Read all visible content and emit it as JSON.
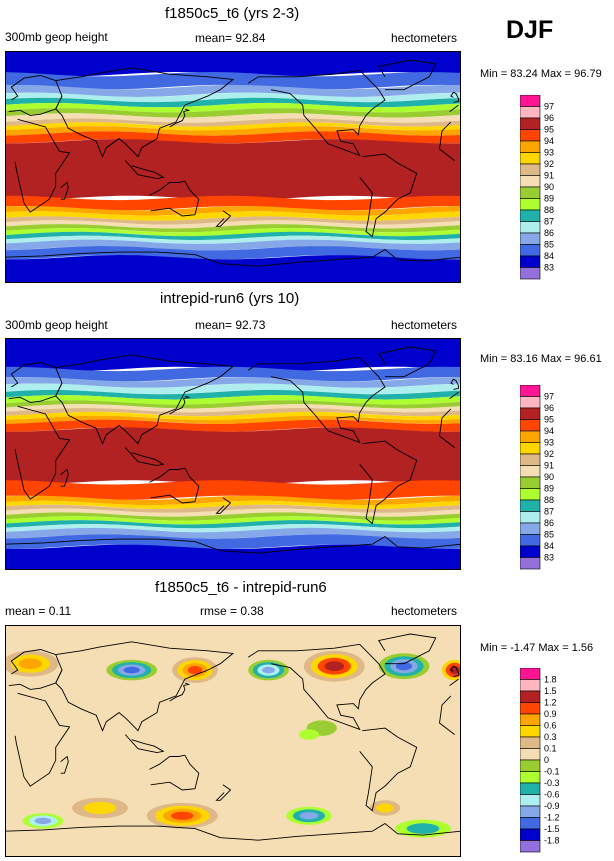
{
  "season": "DJF",
  "chart_data": [
    {
      "type": "filled-contour-map",
      "title": "f1850c5_t6 (yrs 2-3)",
      "left_label": "300mb geop height",
      "center_label": "mean=  92.84",
      "right_label": "hectometers",
      "stats": "Min =  83.24 Max =  96.79",
      "levels": [
        "97",
        "96",
        "95",
        "94",
        "93",
        "92",
        "91",
        "90",
        "89",
        "88",
        "87",
        "86",
        "85",
        "84",
        "83"
      ],
      "colors": [
        "#ff1493",
        "#ffb6c1",
        "#b22222",
        "#ff4500",
        "#ffa500",
        "#ffd700",
        "#deb887",
        "#f5deb3",
        "#9acd32",
        "#adff2f",
        "#20b2aa",
        "#afeeee",
        "#87a8e8",
        "#4169e1",
        "#0000cd",
        "#9370db"
      ],
      "bands": [
        {
          "lat_from": 90,
          "lat_to": 72,
          "level": 84
        },
        {
          "lat_from": 72,
          "lat_to": 62,
          "level": 85
        },
        {
          "lat_from": 62,
          "lat_to": 56,
          "level": 86
        },
        {
          "lat_from": 56,
          "lat_to": 52,
          "level": 87
        },
        {
          "lat_from": 52,
          "lat_to": 48,
          "level": 88
        },
        {
          "lat_from": 48,
          "lat_to": 44,
          "level": 89
        },
        {
          "lat_from": 44,
          "lat_to": 40,
          "level": 90
        },
        {
          "lat_from": 40,
          "lat_to": 36,
          "level": 91
        },
        {
          "lat_from": 36,
          "lat_to": 33,
          "level": 92
        },
        {
          "lat_from": 33,
          "lat_to": 30,
          "level": 93
        },
        {
          "lat_from": 30,
          "lat_to": 26,
          "level": 94
        },
        {
          "lat_from": 26,
          "lat_to": 20,
          "level": 95
        },
        {
          "lat_from": 20,
          "lat_to": -24,
          "level": 96
        },
        {
          "lat_from": -24,
          "lat_to": -32,
          "level": 95
        },
        {
          "lat_from": -32,
          "lat_to": -36,
          "level": 94
        },
        {
          "lat_from": -36,
          "lat_to": -40,
          "level": 93
        },
        {
          "lat_from": -40,
          "lat_to": -43,
          "level": 92
        },
        {
          "lat_from": -43,
          "lat_to": -46,
          "level": 91
        },
        {
          "lat_from": -46,
          "lat_to": -49,
          "level": 90
        },
        {
          "lat_from": -49,
          "lat_to": -52,
          "level": 89
        },
        {
          "lat_from": -52,
          "lat_to": -55,
          "level": 88
        },
        {
          "lat_from": -55,
          "lat_to": -58,
          "level": 87
        },
        {
          "lat_from": -58,
          "lat_to": -63,
          "level": 86
        },
        {
          "lat_from": -63,
          "lat_to": -70,
          "level": 85
        },
        {
          "lat_from": -70,
          "lat_to": -90,
          "level": 84
        }
      ]
    },
    {
      "type": "filled-contour-map",
      "title": "intrepid-run6 (yrs 10)",
      "left_label": "300mb geop height",
      "center_label": "mean=  92.73",
      "right_label": "hectometers",
      "stats": "Min =  83.16 Max =  96.61",
      "levels": [
        "97",
        "96",
        "95",
        "94",
        "93",
        "92",
        "91",
        "90",
        "89",
        "88",
        "87",
        "86",
        "85",
        "84",
        "83"
      ],
      "colors": [
        "#ff1493",
        "#ffb6c1",
        "#b22222",
        "#ff4500",
        "#ffa500",
        "#ffd700",
        "#deb887",
        "#f5deb3",
        "#9acd32",
        "#adff2f",
        "#20b2aa",
        "#afeeee",
        "#87a8e8",
        "#4169e1",
        "#0000cd",
        "#9370db"
      ],
      "bands": [
        {
          "lat_from": 90,
          "lat_to": 66,
          "level": 84
        },
        {
          "lat_from": 66,
          "lat_to": 58,
          "level": 85
        },
        {
          "lat_from": 58,
          "lat_to": 53,
          "level": 86
        },
        {
          "lat_from": 53,
          "lat_to": 48,
          "level": 87
        },
        {
          "lat_from": 48,
          "lat_to": 44,
          "level": 88
        },
        {
          "lat_from": 44,
          "lat_to": 40,
          "level": 89
        },
        {
          "lat_from": 40,
          "lat_to": 37,
          "level": 90
        },
        {
          "lat_from": 37,
          "lat_to": 34,
          "level": 91
        },
        {
          "lat_from": 34,
          "lat_to": 31,
          "level": 92
        },
        {
          "lat_from": 31,
          "lat_to": 28,
          "level": 93
        },
        {
          "lat_from": 28,
          "lat_to": 25,
          "level": 94
        },
        {
          "lat_from": 25,
          "lat_to": 19,
          "level": 95
        },
        {
          "lat_from": 19,
          "lat_to": -22,
          "level": 96
        },
        {
          "lat_from": -22,
          "lat_to": -34,
          "level": 95
        },
        {
          "lat_from": -34,
          "lat_to": -38,
          "level": 94
        },
        {
          "lat_from": -38,
          "lat_to": -41,
          "level": 93
        },
        {
          "lat_from": -41,
          "lat_to": -44,
          "level": 92
        },
        {
          "lat_from": -44,
          "lat_to": -47,
          "level": 91
        },
        {
          "lat_from": -47,
          "lat_to": -50,
          "level": 90
        },
        {
          "lat_from": -50,
          "lat_to": -53,
          "level": 89
        },
        {
          "lat_from": -53,
          "lat_to": -56,
          "level": 88
        },
        {
          "lat_from": -56,
          "lat_to": -59,
          "level": 87
        },
        {
          "lat_from": -59,
          "lat_to": -64,
          "level": 86
        },
        {
          "lat_from": -64,
          "lat_to": -72,
          "level": 85
        },
        {
          "lat_from": -72,
          "lat_to": -90,
          "level": 84
        }
      ]
    },
    {
      "type": "filled-contour-map",
      "title": "f1850c5_t6 - intrepid-run6",
      "left_label": "mean =   0.11",
      "center_label": "rmse =   0.38",
      "right_label": "hectometers",
      "stats": "Min =  -1.47 Max =   1.56",
      "levels": [
        "1.8",
        "1.5",
        "1.2",
        "0.9",
        "0.6",
        "0.3",
        "0.1",
        "0",
        "-0.1",
        "-0.3",
        "-0.6",
        "-0.9",
        "-1.2",
        "-1.5",
        "-1.8"
      ],
      "colors": [
        "#ff1493",
        "#ffb6c1",
        "#b22222",
        "#ff4500",
        "#ffa500",
        "#ffd700",
        "#deb887",
        "#f5deb3",
        "#9acd32",
        "#adff2f",
        "#20b2aa",
        "#afeeee",
        "#87a8e8",
        "#4169e1",
        "#0000cd",
        "#9370db"
      ],
      "background_level": "0.1",
      "anomalies": [
        {
          "lon": 20,
          "lat": 60,
          "rx": 22,
          "ry": 10,
          "levels": [
            "0.3",
            "0.6",
            "0.9"
          ]
        },
        {
          "lon": 100,
          "lat": 55,
          "rx": 20,
          "ry": 8,
          "levels": [
            "0",
            "-0.3",
            "-0.9",
            "-1.2"
          ]
        },
        {
          "lon": 150,
          "lat": 55,
          "rx": 18,
          "ry": 10,
          "levels": [
            "0.3",
            "0.6",
            "0.9",
            "1.2"
          ]
        },
        {
          "lon": 208,
          "lat": 55,
          "rx": 16,
          "ry": 8,
          "levels": [
            "0",
            "-0.3",
            "-0.6",
            "-0.9"
          ]
        },
        {
          "lon": 260,
          "lat": 58,
          "rx": 24,
          "ry": 12,
          "levels": [
            "0.3",
            "0.6",
            "1.2",
            "1.5"
          ]
        },
        {
          "lon": 315,
          "lat": 58,
          "rx": 20,
          "ry": 10,
          "levels": [
            "0",
            "-0.3",
            "-0.9",
            "-1.2"
          ]
        },
        {
          "lon": 355,
          "lat": 55,
          "rx": 10,
          "ry": 8,
          "levels": [
            "0.6",
            "1.2",
            "1.5"
          ]
        },
        {
          "lon": 140,
          "lat": -58,
          "rx": 28,
          "ry": 10,
          "levels": [
            "0.3",
            "0.6",
            "0.9",
            "1.2"
          ]
        },
        {
          "lon": 75,
          "lat": -52,
          "rx": 22,
          "ry": 8,
          "levels": [
            "0.3",
            "0.6"
          ]
        },
        {
          "lon": 240,
          "lat": -58,
          "rx": 18,
          "ry": 7,
          "levels": [
            "-0.1",
            "-0.3",
            "-0.9"
          ]
        },
        {
          "lon": 30,
          "lat": -62,
          "rx": 16,
          "ry": 6,
          "levels": [
            "-0.1",
            "-0.6",
            "-0.9"
          ]
        },
        {
          "lon": 300,
          "lat": -52,
          "rx": 12,
          "ry": 6,
          "levels": [
            "0.3",
            "0.6"
          ]
        },
        {
          "lon": 330,
          "lat": -68,
          "rx": 22,
          "ry": 7,
          "levels": [
            "-0.1",
            "-0.3"
          ]
        },
        {
          "lon": 250,
          "lat": 10,
          "rx": 12,
          "ry": 6,
          "levels": [
            "0"
          ]
        },
        {
          "lon": 240,
          "lat": 5,
          "rx": 8,
          "ry": 4,
          "levels": [
            "-0.1"
          ]
        }
      ]
    }
  ]
}
